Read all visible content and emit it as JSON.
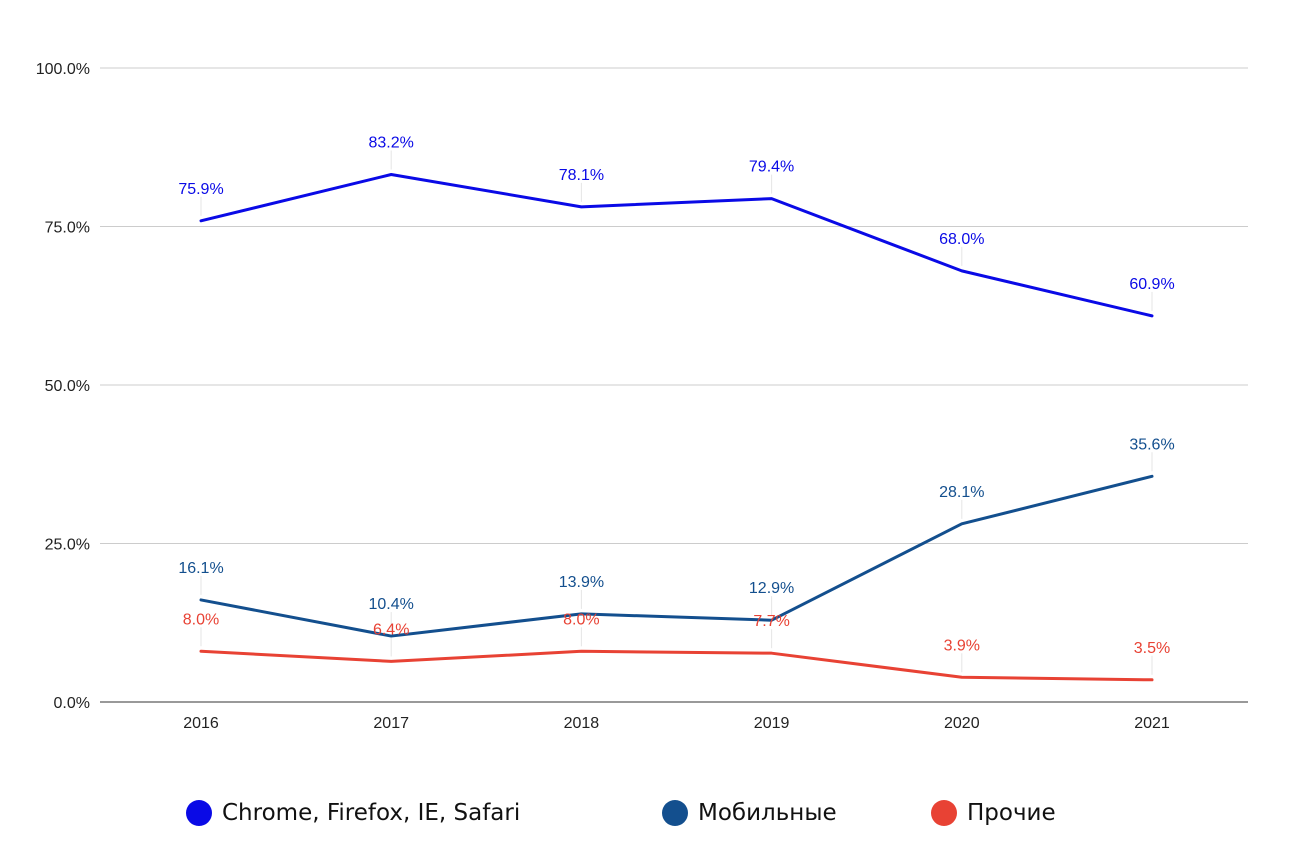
{
  "chart_data": {
    "type": "line",
    "categories": [
      "2016",
      "2017",
      "2018",
      "2019",
      "2020",
      "2021"
    ],
    "ylim": [
      0,
      100
    ],
    "y_ticks": [
      0,
      25,
      50,
      75,
      100
    ],
    "y_tick_labels": [
      "0.0%",
      "25.0%",
      "50.0%",
      "75.0%",
      "100.0%"
    ],
    "grid": true,
    "legend_position": "bottom",
    "series": [
      {
        "name": "Chrome, Firefox, IE, Safari",
        "color": "#0a0ae6",
        "values": [
          75.9,
          83.2,
          78.1,
          79.4,
          68.0,
          60.9
        ],
        "labels": [
          "75.9%",
          "83.2%",
          "78.1%",
          "79.4%",
          "68.0%",
          "60.9%"
        ]
      },
      {
        "name": "Мобильные",
        "color": "#134f8e",
        "values": [
          16.1,
          10.4,
          13.9,
          12.9,
          28.1,
          35.6
        ],
        "labels": [
          "16.1%",
          "10.4%",
          "13.9%",
          "12.9%",
          "28.1%",
          "35.6%"
        ]
      },
      {
        "name": "Прочие",
        "color": "#e84234",
        "values": [
          8.0,
          6.4,
          8.0,
          7.7,
          3.9,
          3.5
        ],
        "labels": [
          "8.0%",
          "6.4%",
          "8.0%",
          "7.7%",
          "3.9%",
          "3.5%"
        ]
      }
    ]
  }
}
